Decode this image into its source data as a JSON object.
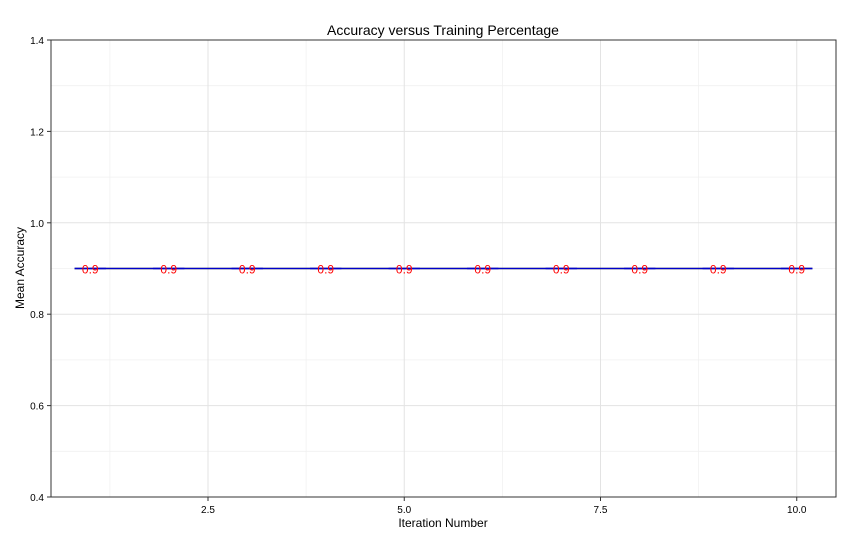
{
  "chart_data": {
    "type": "line",
    "title": "Accuracy versus Training Percentage",
    "xlabel": "Iteration Number",
    "ylabel": "Mean Accuracy",
    "xlim": [
      0.5,
      10.5
    ],
    "ylim": [
      0.4,
      1.4
    ],
    "x_ticks": [
      2.5,
      5.0,
      7.5,
      10.0
    ],
    "x_tick_labels": [
      "2.5",
      "5.0",
      "7.5",
      "10.0"
    ],
    "y_ticks": [
      0.4,
      0.6,
      0.8,
      1.0,
      1.2,
      1.4
    ],
    "y_tick_labels": [
      "0.4",
      "0.6",
      "0.8",
      "1.0",
      "1.2",
      "1.4"
    ],
    "grid": true,
    "x": [
      1,
      2,
      3,
      4,
      5,
      6,
      7,
      8,
      9,
      10
    ],
    "series": [
      {
        "values": [
          0.9,
          0.9,
          0.9,
          0.9,
          0.9,
          0.9,
          0.9,
          0.9,
          0.9,
          0.9
        ],
        "line_color": "#0000cc",
        "data_labels": [
          "0.9",
          "0.9",
          "0.9",
          "0.9",
          "0.9",
          "0.9",
          "0.9",
          "0.9",
          "0.9",
          "0.9"
        ],
        "label_color": "#ff0000"
      }
    ],
    "mean_line": {
      "value": 0.9,
      "color": "#333333"
    },
    "colors": {
      "panel_border": "#333333",
      "grid": "#e3e3e3"
    }
  }
}
